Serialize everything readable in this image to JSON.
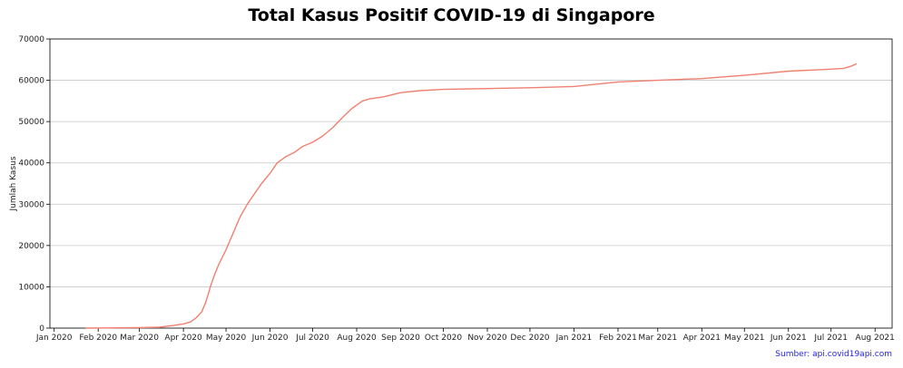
{
  "source_note": "Sumber: api.covid19api.com",
  "chart_data": {
    "type": "line",
    "title": "Total Kasus Positif COVID-19 di Singapore",
    "xlabel": "",
    "ylabel": "Jumlah Kasus",
    "ylim": [
      0,
      70000
    ],
    "xlim": [
      "2019-12-29",
      "2021-08-13"
    ],
    "yticks": [
      0,
      10000,
      20000,
      30000,
      40000,
      50000,
      60000,
      70000
    ],
    "yticklabels": [
      "0",
      "10000",
      "20000",
      "30000",
      "40000",
      "50000",
      "60000",
      "70000"
    ],
    "xticks": [
      "2020-01-01",
      "2020-02-01",
      "2020-03-01",
      "2020-04-01",
      "2020-05-01",
      "2020-06-01",
      "2020-07-01",
      "2020-08-01",
      "2020-09-01",
      "2020-10-01",
      "2020-11-01",
      "2020-12-01",
      "2021-01-01",
      "2021-02-01",
      "2021-03-01",
      "2021-04-01",
      "2021-05-01",
      "2021-06-01",
      "2021-07-01",
      "2021-08-01"
    ],
    "xticklabels": [
      "Jan 2020",
      "Feb 2020",
      "Mar 2020",
      "Apr 2020",
      "May 2020",
      "Jun 2020",
      "Jul 2020",
      "Aug 2020",
      "Sep 2020",
      "Oct 2020",
      "Nov 2020",
      "Dec 2020",
      "Jan 2021",
      "Feb 2021",
      "Mar 2021",
      "Apr 2021",
      "May 2021",
      "Jun 2021",
      "Jul 2021",
      "Aug 2021"
    ],
    "grid": "horizontal",
    "line_color": "#f08070",
    "series": [
      {
        "x": [
          "2020-01-23",
          "2020-02-15",
          "2020-03-01",
          "2020-03-15",
          "2020-03-25",
          "2020-04-01",
          "2020-04-06",
          "2020-04-10",
          "2020-04-14",
          "2020-04-17",
          "2020-04-20",
          "2020-04-23",
          "2020-04-26",
          "2020-05-01",
          "2020-05-06",
          "2020-05-11",
          "2020-05-16",
          "2020-05-21",
          "2020-05-26",
          "2020-06-01",
          "2020-06-06",
          "2020-06-12",
          "2020-06-18",
          "2020-06-24",
          "2020-07-01",
          "2020-07-08",
          "2020-07-15",
          "2020-07-22",
          "2020-07-28",
          "2020-08-03",
          "2020-08-05",
          "2020-08-10",
          "2020-08-20",
          "2020-09-01",
          "2020-09-15",
          "2020-10-01",
          "2020-11-01",
          "2020-12-01",
          "2021-01-01",
          "2021-02-01",
          "2021-03-01",
          "2021-04-01",
          "2021-05-01",
          "2021-06-01",
          "2021-07-01",
          "2021-07-10",
          "2021-07-15",
          "2021-07-19"
        ],
        "y": [
          0,
          60,
          110,
          220,
          630,
          1000,
          1500,
          2500,
          4000,
          6500,
          10000,
          13000,
          15500,
          19000,
          23000,
          27000,
          30000,
          32500,
          35000,
          37500,
          40000,
          41500,
          42500,
          44000,
          45000,
          46500,
          48500,
          51000,
          53000,
          54500,
          55000,
          55500,
          56000,
          57000,
          57500,
          57800,
          58000,
          58200,
          58500,
          59600,
          60000,
          60400,
          61200,
          62200,
          62700,
          62900,
          63400,
          64000
        ]
      }
    ]
  }
}
